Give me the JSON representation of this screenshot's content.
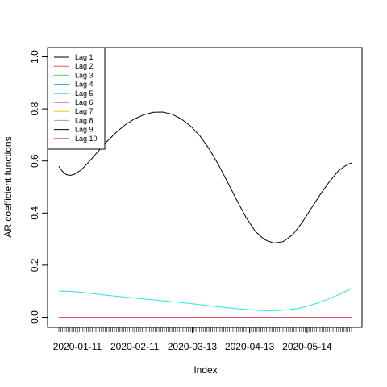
{
  "chart_data": {
    "type": "line",
    "xlabel": "Index",
    "ylabel": "AR coefficient functions",
    "ylim": [
      0,
      1
    ],
    "yticks": [
      0.0,
      0.2,
      0.4,
      0.6,
      0.8,
      1.0
    ],
    "ytick_labels": [
      "0.0",
      "0.2",
      "0.4",
      "0.6",
      "0.8",
      "1.0"
    ],
    "xlim_index": [
      1,
      159
    ],
    "xtick_labels": [
      {
        "label": "2020-01-11",
        "index": 11
      },
      {
        "label": "2020-02-11",
        "index": 42
      },
      {
        "label": "2020-03-13",
        "index": 73
      },
      {
        "label": "2020-04-13",
        "index": 104
      },
      {
        "label": "2020-05-14",
        "index": 135
      }
    ],
    "minor_tick_count": 159,
    "legend_position": "top-left",
    "series": [
      {
        "name": "Lag 1",
        "color": "#000000",
        "x": [
          1,
          3,
          5,
          7,
          9,
          13,
          17,
          22,
          27,
          32,
          37,
          42,
          47,
          52,
          57,
          62,
          67,
          72,
          77,
          82,
          87,
          92,
          97,
          102,
          107,
          112,
          117,
          122,
          127,
          132,
          137,
          142,
          147,
          152,
          157,
          159
        ],
        "y": [
          0.58,
          0.56,
          0.548,
          0.545,
          0.548,
          0.565,
          0.595,
          0.635,
          0.675,
          0.71,
          0.74,
          0.762,
          0.778,
          0.787,
          0.788,
          0.78,
          0.762,
          0.735,
          0.698,
          0.648,
          0.588,
          0.52,
          0.45,
          0.384,
          0.33,
          0.298,
          0.285,
          0.29,
          0.315,
          0.36,
          0.415,
          0.47,
          0.52,
          0.563,
          0.588,
          0.592
        ]
      },
      {
        "name": "Lag 2",
        "color": "#df536b",
        "x": [
          1,
          159
        ],
        "y": [
          0,
          0
        ]
      },
      {
        "name": "Lag 3",
        "color": "#61d04f",
        "x": [],
        "y": []
      },
      {
        "name": "Lag 4",
        "color": "#2297e6",
        "x": [],
        "y": []
      },
      {
        "name": "Lag 5",
        "color": "#28e2e5",
        "x": [
          1,
          5,
          10,
          20,
          30,
          40,
          50,
          60,
          70,
          80,
          90,
          100,
          105,
          110,
          115,
          120,
          125,
          130,
          135,
          140,
          145,
          150,
          155,
          159
        ],
        "y": [
          0.1,
          0.1,
          0.098,
          0.09,
          0.082,
          0.075,
          0.068,
          0.061,
          0.054,
          0.046,
          0.038,
          0.031,
          0.028,
          0.026,
          0.025,
          0.026,
          0.029,
          0.034,
          0.042,
          0.053,
          0.066,
          0.08,
          0.096,
          0.11
        ]
      },
      {
        "name": "Lag 6",
        "color": "#cd0bbc",
        "x": [],
        "y": []
      },
      {
        "name": "Lag 7",
        "color": "#f5c710",
        "x": [],
        "y": []
      },
      {
        "name": "Lag 8",
        "color": "#9e9e9e",
        "x": [],
        "y": []
      },
      {
        "name": "Lag 9",
        "color": "#000000",
        "x": [],
        "y": []
      },
      {
        "name": "Lag 10",
        "color": "#df536b",
        "x": [],
        "y": []
      }
    ]
  }
}
